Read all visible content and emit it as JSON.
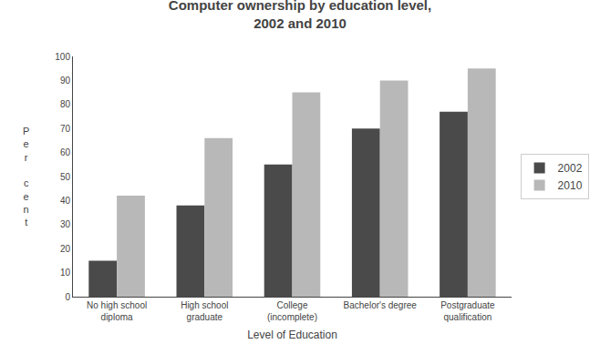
{
  "chart_data": {
    "type": "bar",
    "title": "Computer ownership by education level,\n2002 and 2010",
    "xlabel": "Level of Education",
    "ylabel": "P\ne\nr\n\nc\ne\nn\nt",
    "categories": [
      "No high school\ndiploma",
      "High school\ngraduate",
      "College\n(incomplete)",
      "Bachelor's degree",
      "Postgraduate\nqualification"
    ],
    "series": [
      {
        "name": "2002",
        "color": "#4a4a4a",
        "values": [
          15,
          38,
          55,
          70,
          77
        ]
      },
      {
        "name": "2010",
        "color": "#b8b8b8",
        "values": [
          42,
          66,
          85,
          90,
          95
        ]
      }
    ],
    "ylim": [
      0,
      100
    ],
    "yticks": [
      0,
      10,
      20,
      30,
      40,
      50,
      60,
      70,
      80,
      90,
      100
    ],
    "grid": false,
    "legend": "right"
  }
}
